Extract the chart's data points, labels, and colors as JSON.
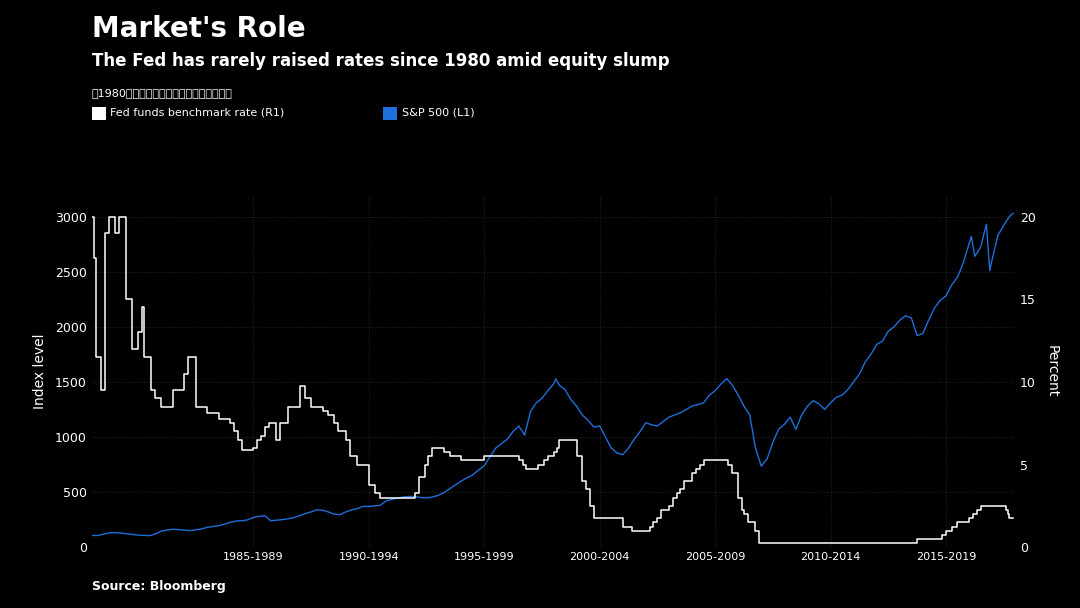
{
  "title1": "Market's Role",
  "title2": "The Fed has rarely raised rates since 1980 amid equity slump",
  "subtitle": "自1980年来美联储极少在股市下跌時期加息",
  "legend1": "Fed funds benchmark rate (R1)",
  "legend2": "S&P 500 (L1)",
  "source": "Source: Bloomberg",
  "ylabel_left": "Index level",
  "ylabel_right": "Percent",
  "bg_color": "#000000",
  "text_color": "#ffffff",
  "grid_color": "#2a2a2a",
  "line_color_fed": "#ffffff",
  "line_color_sp": "#1e6fd9",
  "left_ylim": [
    0,
    3200
  ],
  "right_ylim": [
    0,
    21.33
  ],
  "x_tick_labels": [
    "1985-1989",
    "1990-1994",
    "1995-1999",
    "2000-2004",
    "2005-2009",
    "2010-2014",
    "2015-2019"
  ],
  "x_tick_positions": [
    1987.0,
    1992.0,
    1997.0,
    2002.0,
    2007.0,
    2012.0,
    2017.0
  ],
  "x_grid_positions": [
    1982.5,
    1987.5,
    1992.5,
    1997.5,
    2002.5,
    2007.5,
    2012.5,
    2017.5
  ],
  "left_yticks": [
    0,
    500,
    1000,
    1500,
    2000,
    2500,
    3000
  ],
  "right_yticks": [
    0,
    5,
    10,
    15,
    20
  ],
  "fed_funds_data": [
    [
      1980.0,
      20.0
    ],
    [
      1980.08,
      20.0
    ],
    [
      1980.08,
      17.5
    ],
    [
      1980.17,
      17.5
    ],
    [
      1980.17,
      11.5
    ],
    [
      1980.42,
      11.5
    ],
    [
      1980.42,
      9.5
    ],
    [
      1980.58,
      9.5
    ],
    [
      1980.58,
      19.0
    ],
    [
      1980.75,
      19.0
    ],
    [
      1980.75,
      20.0
    ],
    [
      1981.0,
      20.0
    ],
    [
      1981.0,
      19.0
    ],
    [
      1981.17,
      19.0
    ],
    [
      1981.17,
      20.0
    ],
    [
      1981.5,
      20.0
    ],
    [
      1981.5,
      15.0
    ],
    [
      1981.75,
      15.0
    ],
    [
      1981.75,
      12.0
    ],
    [
      1982.0,
      12.0
    ],
    [
      1982.0,
      13.0
    ],
    [
      1982.17,
      13.0
    ],
    [
      1982.17,
      14.5
    ],
    [
      1982.25,
      14.5
    ],
    [
      1982.25,
      11.5
    ],
    [
      1982.58,
      11.5
    ],
    [
      1982.58,
      9.5
    ],
    [
      1982.75,
      9.5
    ],
    [
      1982.75,
      9.0
    ],
    [
      1983.0,
      9.0
    ],
    [
      1983.0,
      8.5
    ],
    [
      1983.5,
      8.5
    ],
    [
      1983.5,
      9.5
    ],
    [
      1984.0,
      9.5
    ],
    [
      1984.0,
      10.5
    ],
    [
      1984.17,
      10.5
    ],
    [
      1984.17,
      11.5
    ],
    [
      1984.5,
      11.5
    ],
    [
      1984.5,
      8.5
    ],
    [
      1985.0,
      8.5
    ],
    [
      1985.0,
      8.1
    ],
    [
      1985.5,
      8.1
    ],
    [
      1985.5,
      7.75
    ],
    [
      1986.0,
      7.75
    ],
    [
      1986.0,
      7.5
    ],
    [
      1986.17,
      7.5
    ],
    [
      1986.17,
      7.0
    ],
    [
      1986.33,
      7.0
    ],
    [
      1986.33,
      6.5
    ],
    [
      1986.5,
      6.5
    ],
    [
      1986.5,
      5.9
    ],
    [
      1986.75,
      5.9
    ],
    [
      1986.75,
      5.85
    ],
    [
      1987.0,
      5.85
    ],
    [
      1987.0,
      6.0
    ],
    [
      1987.17,
      6.0
    ],
    [
      1987.17,
      6.5
    ],
    [
      1987.33,
      6.5
    ],
    [
      1987.33,
      6.75
    ],
    [
      1987.5,
      6.75
    ],
    [
      1987.5,
      7.25
    ],
    [
      1987.67,
      7.25
    ],
    [
      1987.67,
      7.5
    ],
    [
      1988.0,
      7.5
    ],
    [
      1988.0,
      6.5
    ],
    [
      1988.17,
      6.5
    ],
    [
      1988.17,
      7.5
    ],
    [
      1988.5,
      7.5
    ],
    [
      1988.5,
      8.5
    ],
    [
      1989.0,
      8.5
    ],
    [
      1989.0,
      9.75
    ],
    [
      1989.25,
      9.75
    ],
    [
      1989.25,
      9.0
    ],
    [
      1989.5,
      9.0
    ],
    [
      1989.5,
      8.5
    ],
    [
      1990.0,
      8.5
    ],
    [
      1990.0,
      8.25
    ],
    [
      1990.25,
      8.25
    ],
    [
      1990.25,
      8.0
    ],
    [
      1990.5,
      8.0
    ],
    [
      1990.5,
      7.5
    ],
    [
      1990.67,
      7.5
    ],
    [
      1990.67,
      7.0
    ],
    [
      1991.0,
      7.0
    ],
    [
      1991.0,
      6.5
    ],
    [
      1991.17,
      6.5
    ],
    [
      1991.17,
      5.5
    ],
    [
      1991.5,
      5.5
    ],
    [
      1991.5,
      5.0
    ],
    [
      1992.0,
      5.0
    ],
    [
      1992.0,
      3.75
    ],
    [
      1992.25,
      3.75
    ],
    [
      1992.25,
      3.25
    ],
    [
      1992.5,
      3.25
    ],
    [
      1992.5,
      3.0
    ],
    [
      1993.0,
      3.0
    ],
    [
      1994.0,
      3.0
    ],
    [
      1994.0,
      3.25
    ],
    [
      1994.17,
      3.25
    ],
    [
      1994.17,
      4.25
    ],
    [
      1994.42,
      4.25
    ],
    [
      1994.42,
      5.0
    ],
    [
      1994.58,
      5.0
    ],
    [
      1994.58,
      5.5
    ],
    [
      1994.75,
      5.5
    ],
    [
      1994.75,
      6.0
    ],
    [
      1995.0,
      6.0
    ],
    [
      1995.25,
      6.0
    ],
    [
      1995.25,
      5.75
    ],
    [
      1995.5,
      5.75
    ],
    [
      1995.5,
      5.5
    ],
    [
      1996.0,
      5.5
    ],
    [
      1996.0,
      5.25
    ],
    [
      1997.0,
      5.25
    ],
    [
      1997.0,
      5.5
    ],
    [
      1997.25,
      5.5
    ],
    [
      1998.0,
      5.5
    ],
    [
      1998.0,
      5.5
    ],
    [
      1998.5,
      5.5
    ],
    [
      1998.5,
      5.25
    ],
    [
      1998.67,
      5.25
    ],
    [
      1998.67,
      5.0
    ],
    [
      1998.83,
      5.0
    ],
    [
      1998.83,
      4.75
    ],
    [
      1999.0,
      4.75
    ],
    [
      1999.33,
      4.75
    ],
    [
      1999.33,
      5.0
    ],
    [
      1999.58,
      5.0
    ],
    [
      1999.58,
      5.25
    ],
    [
      1999.75,
      5.25
    ],
    [
      1999.75,
      5.5
    ],
    [
      2000.0,
      5.5
    ],
    [
      2000.0,
      5.75
    ],
    [
      2000.17,
      5.75
    ],
    [
      2000.17,
      6.0
    ],
    [
      2000.25,
      6.0
    ],
    [
      2000.25,
      6.5
    ],
    [
      2000.5,
      6.5
    ],
    [
      2001.0,
      6.5
    ],
    [
      2001.0,
      5.5
    ],
    [
      2001.25,
      5.5
    ],
    [
      2001.25,
      4.0
    ],
    [
      2001.42,
      4.0
    ],
    [
      2001.42,
      3.5
    ],
    [
      2001.58,
      3.5
    ],
    [
      2001.58,
      2.5
    ],
    [
      2001.75,
      2.5
    ],
    [
      2001.75,
      1.75
    ],
    [
      2002.0,
      1.75
    ],
    [
      2003.0,
      1.75
    ],
    [
      2003.0,
      1.25
    ],
    [
      2003.42,
      1.25
    ],
    [
      2003.42,
      1.0
    ],
    [
      2004.0,
      1.0
    ],
    [
      2004.17,
      1.0
    ],
    [
      2004.17,
      1.25
    ],
    [
      2004.33,
      1.25
    ],
    [
      2004.33,
      1.5
    ],
    [
      2004.5,
      1.5
    ],
    [
      2004.5,
      1.75
    ],
    [
      2004.67,
      1.75
    ],
    [
      2004.67,
      2.25
    ],
    [
      2005.0,
      2.25
    ],
    [
      2005.0,
      2.5
    ],
    [
      2005.17,
      2.5
    ],
    [
      2005.17,
      3.0
    ],
    [
      2005.33,
      3.0
    ],
    [
      2005.33,
      3.25
    ],
    [
      2005.5,
      3.25
    ],
    [
      2005.5,
      3.5
    ],
    [
      2005.67,
      3.5
    ],
    [
      2005.67,
      4.0
    ],
    [
      2006.0,
      4.0
    ],
    [
      2006.0,
      4.5
    ],
    [
      2006.17,
      4.5
    ],
    [
      2006.17,
      4.75
    ],
    [
      2006.33,
      4.75
    ],
    [
      2006.33,
      5.0
    ],
    [
      2006.5,
      5.0
    ],
    [
      2006.5,
      5.25
    ],
    [
      2007.0,
      5.25
    ],
    [
      2007.58,
      5.25
    ],
    [
      2007.58,
      5.0
    ],
    [
      2007.75,
      5.0
    ],
    [
      2007.75,
      4.5
    ],
    [
      2008.0,
      4.5
    ],
    [
      2008.0,
      3.0
    ],
    [
      2008.17,
      3.0
    ],
    [
      2008.17,
      2.25
    ],
    [
      2008.25,
      2.25
    ],
    [
      2008.25,
      2.0
    ],
    [
      2008.42,
      2.0
    ],
    [
      2008.42,
      1.5
    ],
    [
      2008.75,
      1.5
    ],
    [
      2008.75,
      1.0
    ],
    [
      2008.92,
      1.0
    ],
    [
      2008.92,
      0.25
    ],
    [
      2015.75,
      0.25
    ],
    [
      2015.75,
      0.5
    ],
    [
      2016.83,
      0.5
    ],
    [
      2016.83,
      0.75
    ],
    [
      2017.0,
      0.75
    ],
    [
      2017.0,
      1.0
    ],
    [
      2017.25,
      1.0
    ],
    [
      2017.25,
      1.25
    ],
    [
      2017.5,
      1.25
    ],
    [
      2017.5,
      1.5
    ],
    [
      2018.0,
      1.5
    ],
    [
      2018.0,
      1.75
    ],
    [
      2018.17,
      1.75
    ],
    [
      2018.17,
      2.0
    ],
    [
      2018.33,
      2.0
    ],
    [
      2018.33,
      2.25
    ],
    [
      2018.5,
      2.25
    ],
    [
      2018.5,
      2.5
    ],
    [
      2018.92,
      2.5
    ],
    [
      2019.58,
      2.5
    ],
    [
      2019.58,
      2.25
    ],
    [
      2019.67,
      2.25
    ],
    [
      2019.67,
      2.0
    ],
    [
      2019.75,
      2.0
    ],
    [
      2019.75,
      1.75
    ],
    [
      2019.9,
      1.75
    ]
  ],
  "sp500_data": [
    [
      1980.0,
      107
    ],
    [
      1980.25,
      106
    ],
    [
      1980.5,
      118
    ],
    [
      1980.75,
      130
    ],
    [
      1981.0,
      132
    ],
    [
      1981.25,
      128
    ],
    [
      1981.5,
      122
    ],
    [
      1981.75,
      117
    ],
    [
      1982.0,
      110
    ],
    [
      1982.25,
      108
    ],
    [
      1982.5,
      105
    ],
    [
      1982.75,
      120
    ],
    [
      1983.0,
      145
    ],
    [
      1983.25,
      155
    ],
    [
      1983.5,
      163
    ],
    [
      1983.75,
      160
    ],
    [
      1984.0,
      155
    ],
    [
      1984.25,
      150
    ],
    [
      1984.5,
      158
    ],
    [
      1984.75,
      165
    ],
    [
      1985.0,
      180
    ],
    [
      1985.25,
      188
    ],
    [
      1985.5,
      195
    ],
    [
      1985.75,
      210
    ],
    [
      1986.0,
      225
    ],
    [
      1986.25,
      238
    ],
    [
      1986.5,
      240
    ],
    [
      1986.75,
      248
    ],
    [
      1987.0,
      270
    ],
    [
      1987.25,
      280
    ],
    [
      1987.5,
      285
    ],
    [
      1987.75,
      240
    ],
    [
      1988.0,
      245
    ],
    [
      1988.25,
      250
    ],
    [
      1988.5,
      258
    ],
    [
      1988.75,
      268
    ],
    [
      1989.0,
      285
    ],
    [
      1989.25,
      305
    ],
    [
      1989.5,
      320
    ],
    [
      1989.75,
      340
    ],
    [
      1990.0,
      335
    ],
    [
      1990.25,
      320
    ],
    [
      1990.5,
      300
    ],
    [
      1990.75,
      295
    ],
    [
      1991.0,
      320
    ],
    [
      1991.25,
      338
    ],
    [
      1991.5,
      350
    ],
    [
      1991.75,
      370
    ],
    [
      1992.0,
      370
    ],
    [
      1992.25,
      375
    ],
    [
      1992.5,
      380
    ],
    [
      1992.75,
      420
    ],
    [
      1993.0,
      435
    ],
    [
      1993.25,
      445
    ],
    [
      1993.5,
      456
    ],
    [
      1993.75,
      460
    ],
    [
      1994.0,
      460
    ],
    [
      1994.25,
      450
    ],
    [
      1994.5,
      448
    ],
    [
      1994.75,
      455
    ],
    [
      1995.0,
      470
    ],
    [
      1995.25,
      495
    ],
    [
      1995.5,
      530
    ],
    [
      1995.75,
      565
    ],
    [
      1996.0,
      600
    ],
    [
      1996.25,
      630
    ],
    [
      1996.5,
      655
    ],
    [
      1996.75,
      700
    ],
    [
      1997.0,
      740
    ],
    [
      1997.25,
      820
    ],
    [
      1997.5,
      900
    ],
    [
      1997.75,
      940
    ],
    [
      1998.0,
      980
    ],
    [
      1998.25,
      1050
    ],
    [
      1998.5,
      1100
    ],
    [
      1998.75,
      1017
    ],
    [
      1999.0,
      1230
    ],
    [
      1999.25,
      1310
    ],
    [
      1999.5,
      1350
    ],
    [
      1999.75,
      1420
    ],
    [
      2000.0,
      1480
    ],
    [
      2000.1,
      1527
    ],
    [
      2000.25,
      1470
    ],
    [
      2000.5,
      1430
    ],
    [
      2000.75,
      1340
    ],
    [
      2001.0,
      1280
    ],
    [
      2001.25,
      1200
    ],
    [
      2001.5,
      1150
    ],
    [
      2001.75,
      1090
    ],
    [
      2002.0,
      1100
    ],
    [
      2002.25,
      1000
    ],
    [
      2002.5,
      900
    ],
    [
      2002.75,
      855
    ],
    [
      2003.0,
      840
    ],
    [
      2003.25,
      900
    ],
    [
      2003.5,
      980
    ],
    [
      2003.75,
      1050
    ],
    [
      2004.0,
      1130
    ],
    [
      2004.25,
      1110
    ],
    [
      2004.5,
      1100
    ],
    [
      2004.75,
      1140
    ],
    [
      2005.0,
      1180
    ],
    [
      2005.25,
      1200
    ],
    [
      2005.5,
      1220
    ],
    [
      2005.75,
      1250
    ],
    [
      2006.0,
      1280
    ],
    [
      2006.25,
      1295
    ],
    [
      2006.5,
      1310
    ],
    [
      2006.75,
      1380
    ],
    [
      2007.0,
      1420
    ],
    [
      2007.25,
      1480
    ],
    [
      2007.5,
      1530
    ],
    [
      2007.75,
      1470
    ],
    [
      2008.0,
      1380
    ],
    [
      2008.25,
      1280
    ],
    [
      2008.5,
      1200
    ],
    [
      2008.75,
      900
    ],
    [
      2009.0,
      735
    ],
    [
      2009.25,
      800
    ],
    [
      2009.5,
      950
    ],
    [
      2009.75,
      1070
    ],
    [
      2010.0,
      1115
    ],
    [
      2010.25,
      1180
    ],
    [
      2010.5,
      1070
    ],
    [
      2010.75,
      1200
    ],
    [
      2011.0,
      1280
    ],
    [
      2011.25,
      1330
    ],
    [
      2011.5,
      1300
    ],
    [
      2011.75,
      1250
    ],
    [
      2012.0,
      1310
    ],
    [
      2012.25,
      1360
    ],
    [
      2012.5,
      1380
    ],
    [
      2012.75,
      1430
    ],
    [
      2013.0,
      1500
    ],
    [
      2013.25,
      1570
    ],
    [
      2013.5,
      1680
    ],
    [
      2013.75,
      1750
    ],
    [
      2014.0,
      1840
    ],
    [
      2014.25,
      1870
    ],
    [
      2014.5,
      1960
    ],
    [
      2014.75,
      2000
    ],
    [
      2015.0,
      2060
    ],
    [
      2015.25,
      2100
    ],
    [
      2015.5,
      2080
    ],
    [
      2015.75,
      1920
    ],
    [
      2016.0,
      1940
    ],
    [
      2016.25,
      2060
    ],
    [
      2016.5,
      2170
    ],
    [
      2016.75,
      2240
    ],
    [
      2017.0,
      2280
    ],
    [
      2017.25,
      2380
    ],
    [
      2017.5,
      2450
    ],
    [
      2017.75,
      2580
    ],
    [
      2018.0,
      2750
    ],
    [
      2018.1,
      2820
    ],
    [
      2018.25,
      2640
    ],
    [
      2018.5,
      2720
    ],
    [
      2018.75,
      2930
    ],
    [
      2018.9,
      2510
    ],
    [
      2019.0,
      2610
    ],
    [
      2019.25,
      2830
    ],
    [
      2019.5,
      2920
    ],
    [
      2019.75,
      3000
    ],
    [
      2019.9,
      3030
    ]
  ]
}
